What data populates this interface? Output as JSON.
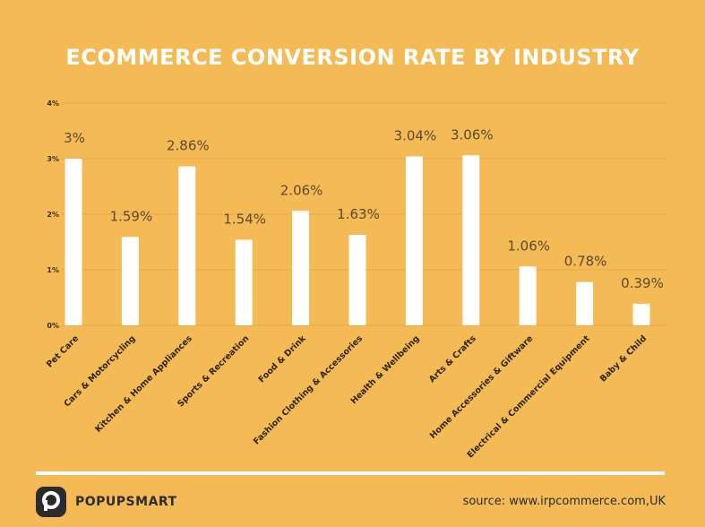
{
  "chart_data": {
    "type": "bar",
    "title": "ECOMMERCE CONVERSION RATE BY INDUSTRY",
    "categories": [
      "Pet Care",
      "Cars & Motorcycling",
      "Kitchen & Home Appliances",
      "Sports & Recreation",
      "Food & Drink",
      "Fashion Clothing & Accessories",
      "Health & Wellbeing",
      "Arts & Crafts",
      "Home Accessories & Giftware",
      "Electrical & Commercial Equipment",
      "Baby & Child"
    ],
    "values": [
      3,
      1.59,
      2.86,
      1.54,
      2.06,
      1.63,
      3.04,
      3.06,
      1.06,
      0.78,
      0.39
    ],
    "data_labels": [
      "3%",
      "1.59%",
      "2.86%",
      "1.54%",
      "2.06%",
      "1.63%",
      "3.04%",
      "3.06%",
      "1.06%",
      "0.78%",
      "0.39%"
    ],
    "ylim": [
      0,
      4
    ],
    "yticks": [
      0,
      1,
      2,
      3,
      4
    ],
    "ytick_labels": [
      "0%",
      "1%",
      "2%",
      "3%",
      "4%"
    ],
    "grid": true,
    "colors": {
      "background": "#F3BA55",
      "bar": "#FFFFFF",
      "grid": "#E8A945",
      "text": "#5A4A30",
      "title": "#FFFFFF"
    }
  },
  "footer": {
    "brand": "POPUPSMART",
    "source": "source: www.irpcommerce.com,UK"
  }
}
